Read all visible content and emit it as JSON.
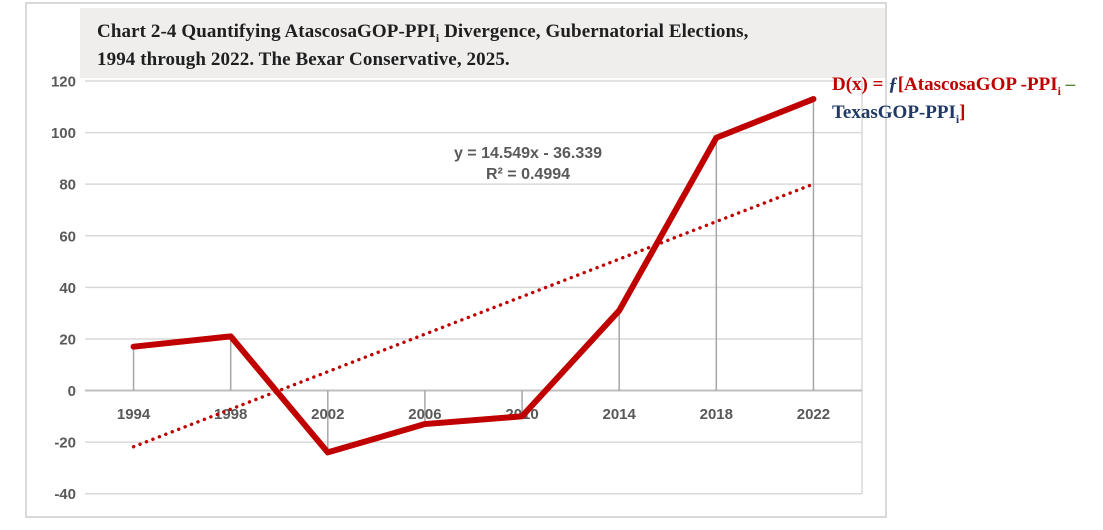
{
  "title": {
    "line1_pre": "Chart 2-4 Quantifying AtascosaGOP-PPI",
    "line1_sub": "i",
    "line1_post": " Divergence, Gubernatorial Elections,",
    "line2": "1994 through 2022. The Bexar Conservative, 2025."
  },
  "equation": {
    "line1": "y = 14.549x - 36.339",
    "line2": "R² = 0.4994"
  },
  "annotation": {
    "d_prefix": "D(x) = ",
    "integral": "ƒ",
    "bracket_open": "[",
    "term1": "AtascosaGOP -PPI",
    "term1_sub": "i",
    "minus": " –",
    "term2": "TexasGOP-PPI",
    "term2_sub": "i",
    "bracket_close": "]",
    "colors": {
      "red": "#C00000",
      "navy": "#1F3864",
      "green": "#538135"
    }
  },
  "chart_data": {
    "type": "line",
    "title": "Chart 2-4 Quantifying AtascosaGOP-PPIi Divergence, Gubernatorial Elections, 1994 through 2022. The Bexar Conservative, 2025.",
    "categories": [
      "1994",
      "1998",
      "2002",
      "2006",
      "2010",
      "2014",
      "2018",
      "2022"
    ],
    "series": [
      {
        "name": "AtascosaGOP-PPIi minus TexasGOP-PPIi divergence",
        "values": [
          17,
          21,
          -24,
          -13,
          -10,
          31,
          98,
          113
        ],
        "color": "#C00000",
        "style": "solid"
      }
    ],
    "trendline": {
      "label": "y = 14.549x - 36.339",
      "r2_label": "R² = 0.4994",
      "slope": 14.549,
      "intercept": -36.339,
      "r2": 0.4994,
      "color": "#C00000",
      "style": "dotted"
    },
    "ylim": [
      -40,
      120
    ],
    "yticks": [
      120,
      100,
      80,
      60,
      40,
      20,
      0,
      -20,
      -40
    ],
    "ytick_step": 20,
    "grid": "horizontal-only",
    "drop_lines": true,
    "legend": "none",
    "colors": {
      "grid": "#D9D9D9",
      "axis": "#BFBFBF",
      "drop_line": "#A6A6A6",
      "tick_label": "#595959",
      "equation_text": "#595959"
    }
  }
}
